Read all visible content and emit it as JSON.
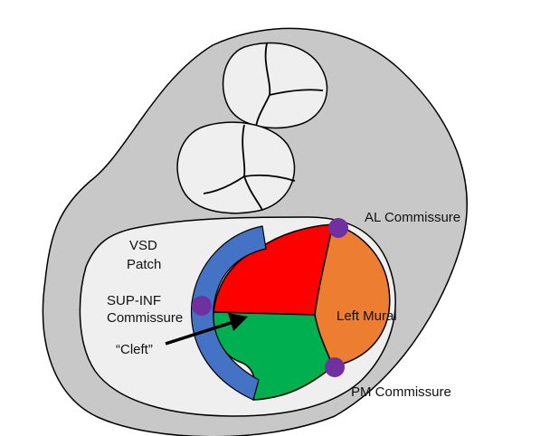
{
  "labels": {
    "vsd_line1": "VSD",
    "vsd_line2": "Patch",
    "supinf_line1": "SUP-INF",
    "supinf_line2": "Commissure",
    "cleft": "“Cleft”",
    "al_commissure": "AL Commissure",
    "left_mural": "Left Mural",
    "pm_commissure": "PM Commissure"
  },
  "colors": {
    "outer_body": "#c8c8c8",
    "valve_ring": "#efefef",
    "leaflet_fill": "#efefef",
    "patch": "#4472c4",
    "superior_leaflet": "#ff0000",
    "inferior_leaflet": "#00b050",
    "left_mural_leaflet": "#ed7d31",
    "commissure_dot": "#7030a0",
    "outline": "#000000"
  }
}
